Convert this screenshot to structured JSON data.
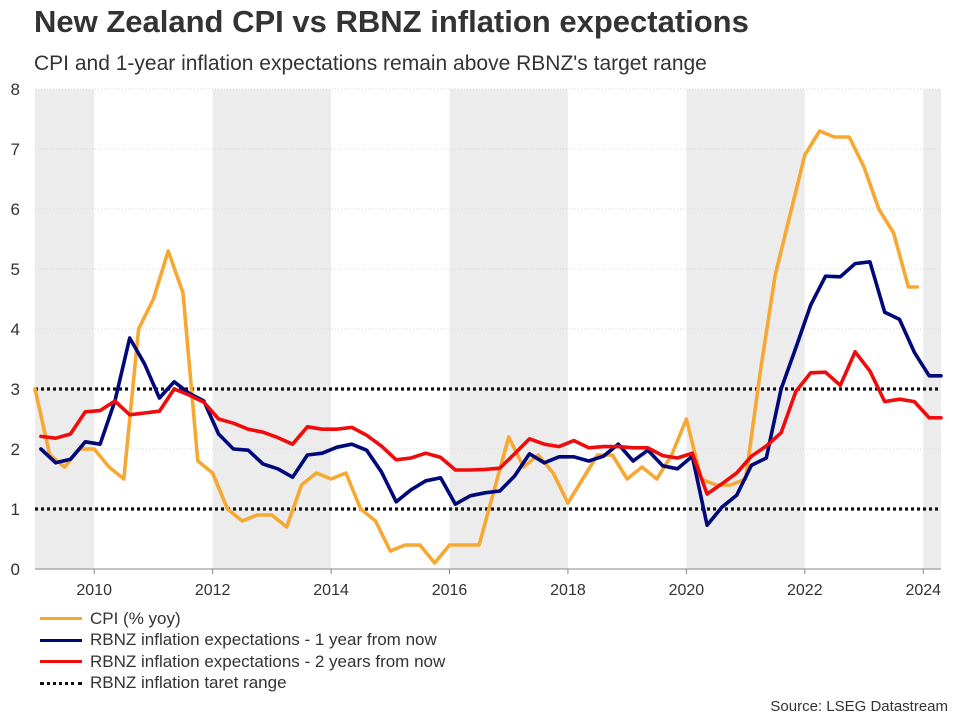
{
  "title": "New Zealand CPI vs RBNZ inflation expectations",
  "subtitle": "CPI and 1-year inflation expectations remain above RBNZ's target range",
  "source": "Source: LSEG Datastream",
  "colors": {
    "cpi": "#F7A833",
    "exp1": "#00097A",
    "exp2": "#EE0C0C",
    "target": "#111111",
    "band": "#ECECEC",
    "grid": "#D9D9D9"
  },
  "chart_data": {
    "type": "line",
    "title": "New Zealand CPI vs RBNZ inflation expectations",
    "subtitle": "CPI and 1-year inflation expectations remain above RBNZ's target range",
    "xlabel": "",
    "ylabel": "",
    "xlim": [
      2009.0,
      2024.3
    ],
    "ylim": [
      0,
      8
    ],
    "x_ticks": [
      "2010",
      "2012",
      "2014",
      "2016",
      "2018",
      "2020",
      "2022",
      "2024"
    ],
    "y_ticks": [
      "0",
      "1",
      "2",
      "3",
      "4",
      "5",
      "6",
      "7",
      "8"
    ],
    "shaded_periods": [
      [
        2009.0,
        2010.0
      ],
      [
        2012.0,
        2014.0
      ],
      [
        2016.0,
        2018.0
      ],
      [
        2020.0,
        2022.0
      ],
      [
        2024.0,
        2024.3
      ]
    ],
    "grid": true,
    "legend_position": "bottom-left",
    "series": [
      {
        "name": "CPI (% yoy)",
        "key": "cpi",
        "x": [
          2009.0,
          2009.25,
          2009.5,
          2009.75,
          2010.0,
          2010.25,
          2010.5,
          2010.75,
          2011.0,
          2011.25,
          2011.5,
          2011.75,
          2012.0,
          2012.25,
          2012.5,
          2012.75,
          2013.0,
          2013.25,
          2013.5,
          2013.75,
          2014.0,
          2014.25,
          2014.5,
          2014.75,
          2015.0,
          2015.25,
          2015.5,
          2015.75,
          2016.0,
          2016.25,
          2016.5,
          2016.75,
          2017.0,
          2017.25,
          2017.5,
          2017.75,
          2018.0,
          2018.25,
          2018.5,
          2018.75,
          2019.0,
          2019.25,
          2019.5,
          2019.75,
          2020.0,
          2020.25,
          2020.5,
          2020.75,
          2021.0,
          2021.25,
          2021.5,
          2021.75,
          2022.0,
          2022.25,
          2022.5,
          2022.75,
          2023.0,
          2023.25,
          2023.5,
          2023.75,
          2023.9
        ],
        "values": [
          3.0,
          1.9,
          1.7,
          2.0,
          2.0,
          1.7,
          1.5,
          4.0,
          4.5,
          5.3,
          4.6,
          1.8,
          1.6,
          1.0,
          0.8,
          0.9,
          0.9,
          0.7,
          1.4,
          1.6,
          1.5,
          1.6,
          1.0,
          0.8,
          0.3,
          0.4,
          0.4,
          0.1,
          0.4,
          0.4,
          0.4,
          1.3,
          2.2,
          1.7,
          1.9,
          1.6,
          1.1,
          1.5,
          1.9,
          1.9,
          1.5,
          1.7,
          1.5,
          1.9,
          2.5,
          1.5,
          1.4,
          1.4,
          1.5,
          3.3,
          4.9,
          5.9,
          6.9,
          7.3,
          7.2,
          7.2,
          6.7,
          6.0,
          5.6,
          4.7,
          4.7
        ]
      },
      {
        "name": "RBNZ inflation expectations - 1 year from now",
        "key": "exp1",
        "x": [
          2009.1,
          2009.35,
          2009.6,
          2009.85,
          2010.1,
          2010.35,
          2010.6,
          2010.85,
          2011.1,
          2011.35,
          2011.6,
          2011.85,
          2012.1,
          2012.35,
          2012.6,
          2012.85,
          2013.1,
          2013.35,
          2013.6,
          2013.85,
          2014.1,
          2014.35,
          2014.6,
          2014.85,
          2015.1,
          2015.35,
          2015.6,
          2015.85,
          2016.1,
          2016.35,
          2016.6,
          2016.85,
          2017.1,
          2017.35,
          2017.6,
          2017.85,
          2018.1,
          2018.35,
          2018.6,
          2018.85,
          2019.1,
          2019.35,
          2019.6,
          2019.85,
          2020.1,
          2020.35,
          2020.6,
          2020.85,
          2021.1,
          2021.35,
          2021.6,
          2021.85,
          2022.1,
          2022.35,
          2022.6,
          2022.85,
          2023.1,
          2023.35,
          2023.6,
          2023.85,
          2024.1,
          2024.3
        ],
        "values": [
          2.0,
          1.77,
          1.83,
          2.12,
          2.08,
          2.8,
          3.85,
          3.42,
          2.85,
          3.12,
          2.93,
          2.8,
          2.25,
          2.0,
          1.98,
          1.75,
          1.67,
          1.53,
          1.9,
          1.93,
          2.03,
          2.08,
          1.98,
          1.62,
          1.12,
          1.32,
          1.47,
          1.52,
          1.08,
          1.22,
          1.27,
          1.3,
          1.55,
          1.92,
          1.77,
          1.87,
          1.87,
          1.8,
          1.88,
          2.08,
          1.8,
          1.98,
          1.72,
          1.67,
          1.88,
          0.73,
          1.03,
          1.23,
          1.73,
          1.85,
          3.0,
          3.69,
          4.4,
          4.88,
          4.87,
          5.09,
          5.12,
          4.28,
          4.16,
          3.61,
          3.22,
          3.22
        ]
      },
      {
        "name": "RBNZ inflation expectations - 2 years from now",
        "key": "exp2",
        "x": [
          2009.1,
          2009.35,
          2009.6,
          2009.85,
          2010.1,
          2010.35,
          2010.6,
          2010.85,
          2011.1,
          2011.35,
          2011.6,
          2011.85,
          2012.1,
          2012.35,
          2012.6,
          2012.85,
          2013.1,
          2013.35,
          2013.6,
          2013.85,
          2014.1,
          2014.35,
          2014.6,
          2014.85,
          2015.1,
          2015.35,
          2015.6,
          2015.85,
          2016.1,
          2016.35,
          2016.6,
          2016.85,
          2017.1,
          2017.35,
          2017.6,
          2017.85,
          2018.1,
          2018.35,
          2018.6,
          2018.85,
          2019.1,
          2019.35,
          2019.6,
          2019.85,
          2020.1,
          2020.35,
          2020.6,
          2020.85,
          2021.1,
          2021.35,
          2021.6,
          2021.85,
          2022.1,
          2022.35,
          2022.6,
          2022.85,
          2023.1,
          2023.35,
          2023.6,
          2023.85,
          2024.1,
          2024.3
        ],
        "values": [
          2.21,
          2.18,
          2.25,
          2.62,
          2.64,
          2.8,
          2.57,
          2.6,
          2.63,
          3.0,
          2.9,
          2.78,
          2.5,
          2.43,
          2.33,
          2.28,
          2.19,
          2.08,
          2.37,
          2.33,
          2.33,
          2.36,
          2.23,
          2.05,
          1.82,
          1.85,
          1.93,
          1.86,
          1.65,
          1.65,
          1.66,
          1.68,
          1.92,
          2.17,
          2.08,
          2.04,
          2.14,
          2.02,
          2.04,
          2.04,
          2.02,
          2.02,
          1.89,
          1.85,
          1.93,
          1.25,
          1.42,
          1.6,
          1.88,
          2.05,
          2.27,
          2.96,
          3.27,
          3.28,
          3.06,
          3.62,
          3.3,
          2.79,
          2.83,
          2.79,
          2.52,
          2.52
        ]
      },
      {
        "name": "RBNZ inflation taret range",
        "key": "target",
        "lines": [
          1,
          3
        ]
      }
    ]
  }
}
